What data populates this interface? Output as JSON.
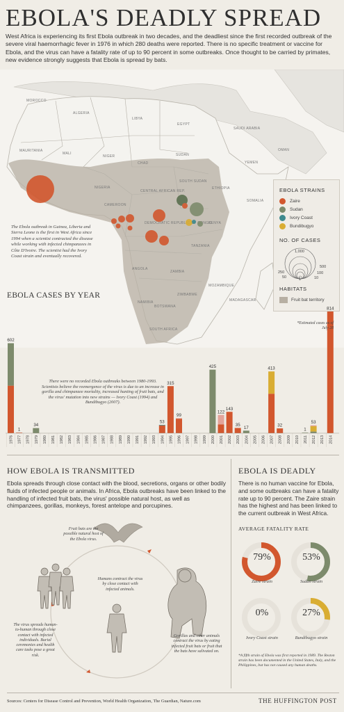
{
  "title": "EBOLA'S DEADLY SPREAD",
  "intro": "West Africa is experiencing its first Ebola outbreak in two decades, and the deadliest since the first recorded outbreak of the severe viral haemorrhagic fever in 1976 in which 280 deaths were reported. There is no specific treatment or vaccine for Ebola, and the virus can have a fatality rate of up to 90 percent in some outbreaks. Once thought to be carried by primates, new evidence strongly suggests that Ebola is spread by bats.",
  "map": {
    "labels": [
      "MOROCCO",
      "ALGERIA",
      "LIBYA",
      "EGYPT",
      "MAURITANIA",
      "MALI",
      "NIGER",
      "CHAD",
      "SUDAN",
      "SAUDI ARABIA",
      "YEMEN",
      "OMAN",
      "NIGERIA",
      "CENTRAL AFRICAN REP.",
      "SOUTH SUDAN",
      "ETHIOPIA",
      "CAMEROON",
      "DEMOCRATIC REPUBLIC OF CONGO",
      "KENYA",
      "TANZANIA",
      "ANGOLA",
      "ZAMBIA",
      "NAMIBIA",
      "BOTSWANA",
      "ZIMBABWE",
      "SOUTH AFRICA",
      "MOZAMBIQUE",
      "MADAGASCAR",
      "SOMALIA"
    ],
    "guinea_note": "The Ebola outbreak in Guinea, Liberia and Sierra Leone is the first in West Africa since 1994 when a scientist contracted the disease while working with infected chimpanzees in Côte D'Ivoire. The scientist had the Ivory Coast strain and eventually recovered."
  },
  "legend": {
    "strains_title": "EBOLA STRAINS",
    "strains": [
      {
        "label": "Zaire",
        "color": "#d2572e"
      },
      {
        "label": "Sudan",
        "color": "#7d8b6c"
      },
      {
        "label": "Ivory Coast",
        "color": "#3e8a8e"
      },
      {
        "label": "Bundibugyo",
        "color": "#d9ad33"
      }
    ],
    "cases_title": "NO. OF CASES",
    "case_sizes": [
      "1,000",
      "500",
      "250",
      "100",
      "50",
      "10",
      "1"
    ],
    "habitats_title": "HABITATS",
    "habitat_label": "Fruit bat territory"
  },
  "chart_data": {
    "type": "bar",
    "title": "EBOLA CASES BY YEAR",
    "categories": [
      "1976",
      "1977",
      "1978",
      "1979",
      "1980",
      "1981",
      "1982",
      "1983",
      "1984",
      "1985",
      "1986",
      "1987",
      "1988",
      "1989",
      "1990",
      "1991",
      "1992",
      "1993",
      "1994",
      "1995",
      "1996",
      "1997",
      "1998",
      "1999",
      "2000",
      "2001",
      "2002",
      "2003",
      "2004",
      "2005",
      "2006",
      "2007",
      "2008",
      "2009",
      "2010",
      "2011",
      "2012",
      "2013",
      "2014"
    ],
    "totals": [
      602,
      1,
      0,
      34,
      0,
      0,
      0,
      0,
      0,
      0,
      0,
      0,
      0,
      0,
      0,
      0,
      0,
      0,
      53,
      315,
      99,
      0,
      0,
      0,
      425,
      122,
      143,
      35,
      17,
      0,
      0,
      413,
      32,
      0,
      0,
      1,
      53,
      0,
      814
    ],
    "total_labels": [
      "602",
      "1",
      "",
      "34",
      "",
      "",
      "",
      "",
      "",
      "",
      "",
      "",
      "",
      "",
      "",
      "",
      "",
      "",
      "53",
      "315",
      "99",
      "",
      "",
      "",
      "425",
      "122",
      "143",
      "35",
      "17",
      "",
      "",
      "413",
      "32",
      "",
      "",
      "1",
      "53",
      "",
      "814"
    ],
    "series": [
      {
        "name": "Zaire",
        "color": "#d2572e",
        "values": [
          318,
          1,
          0,
          0,
          0,
          0,
          0,
          0,
          0,
          0,
          0,
          0,
          0,
          0,
          0,
          0,
          0,
          0,
          52,
          315,
          97,
          0,
          0,
          0,
          0,
          59,
          143,
          35,
          0,
          0,
          0,
          264,
          32,
          0,
          0,
          0,
          0,
          0,
          814
        ]
      },
      {
        "name": "Sudan",
        "color": "#7d8b6c",
        "values": [
          284,
          0,
          0,
          34,
          0,
          0,
          0,
          0,
          0,
          0,
          0,
          0,
          0,
          0,
          0,
          0,
          0,
          0,
          0,
          0,
          0,
          0,
          0,
          0,
          425,
          0,
          0,
          0,
          17,
          0,
          0,
          0,
          0,
          0,
          0,
          1,
          11,
          0,
          0
        ]
      },
      {
        "name": "Ivory Coast",
        "color": "#3e8a8e",
        "values": [
          0,
          0,
          0,
          0,
          0,
          0,
          0,
          0,
          0,
          0,
          0,
          0,
          0,
          0,
          0,
          0,
          0,
          0,
          1,
          0,
          0,
          0,
          0,
          0,
          0,
          0,
          0,
          0,
          0,
          0,
          0,
          0,
          0,
          0,
          0,
          0,
          0,
          0,
          0
        ]
      },
      {
        "name": "Bundibugyo",
        "color": "#d9ad33",
        "values": [
          0,
          0,
          0,
          0,
          0,
          0,
          0,
          0,
          0,
          0,
          0,
          0,
          0,
          0,
          0,
          0,
          0,
          0,
          0,
          0,
          0,
          0,
          0,
          0,
          0,
          0,
          0,
          0,
          0,
          0,
          0,
          149,
          0,
          0,
          0,
          0,
          36,
          0,
          0
        ]
      },
      {
        "name": "Reston",
        "color": "#e3a49a",
        "values": [
          0,
          0,
          0,
          0,
          0,
          0,
          0,
          0,
          0,
          0,
          0,
          0,
          0,
          0,
          0,
          0,
          0,
          0,
          0,
          0,
          2,
          0,
          0,
          0,
          0,
          63,
          0,
          0,
          0,
          0,
          0,
          0,
          0,
          0,
          0,
          0,
          6,
          0,
          0
        ]
      }
    ],
    "gap_note": "There were no recorded Ebola outbreaks between 1980-1993. Scientists believe the reemergence of the virus is due to an increase in gorilla and chimpanzee mortality, increased hunting of fruit bats, and the virus' mutation into new strains — Ivory Coast (1994) and Bundibugyo (2007).",
    "estimate_note": "*Estimated cases as of July 28"
  },
  "transmitted": {
    "heading": "HOW EBOLA IS TRANSMITTED",
    "body": "Ebola spreads through close contact with the blood, secretions, organs or other bodily fluids of infected people or animals. In Africa, Ebola outbreaks have been linked to the handling of infected fruit bats, the virus' possible natural host, as well as chimpanzees, gorillas, monkeys, forest antelope and porcupines.",
    "bat_caption": "Fruit bats are the possible natural host of the Ebola virus.",
    "human_caption": "Humans contract the virus by close contact with infected animals.",
    "h2h_caption": "The virus spreads human-to-human through close contact with infected individuals. Burial ceremonies and health care tasks pose a great risk.",
    "gorilla_caption": "Gorillas and other animals contract the virus by eating infected fruit bats or fruit that the bats have salivated on."
  },
  "deadly": {
    "heading": "EBOLA IS DEADLY",
    "body": "There is no human vaccine for Ebola, and some outbreaks can have a fatality rate up to 90 percent. The Zaire strain has the highest and has been linked to the current outbreak in West Africa.",
    "rate_title": "AVERAGE FATALITY RATE",
    "rates": [
      {
        "label": "Zaire strain",
        "pct": "79%",
        "value": 79,
        "color": "#d2572e"
      },
      {
        "label": "Sudan strain",
        "pct": "53%",
        "value": 53,
        "color": "#7d8b6c"
      },
      {
        "label": "Ivory Coast strain",
        "pct": "0%",
        "value": 0,
        "color": "#3e8a8e"
      },
      {
        "label": "Bundibugyo strain",
        "pct": "27%",
        "value": 27,
        "color": "#d9ad33"
      }
    ],
    "footnote": "*A fifth strain of Ebola was first reported in 1989. The Reston strain has been documented in the United States, Italy, and the Philippines, but has not caused any human deaths."
  },
  "sources": "Sources: Centers for Disease Control and Prevention, World Health Organization, The Guardian, Nature.com",
  "brand": "THE HUFFINGTON POST"
}
